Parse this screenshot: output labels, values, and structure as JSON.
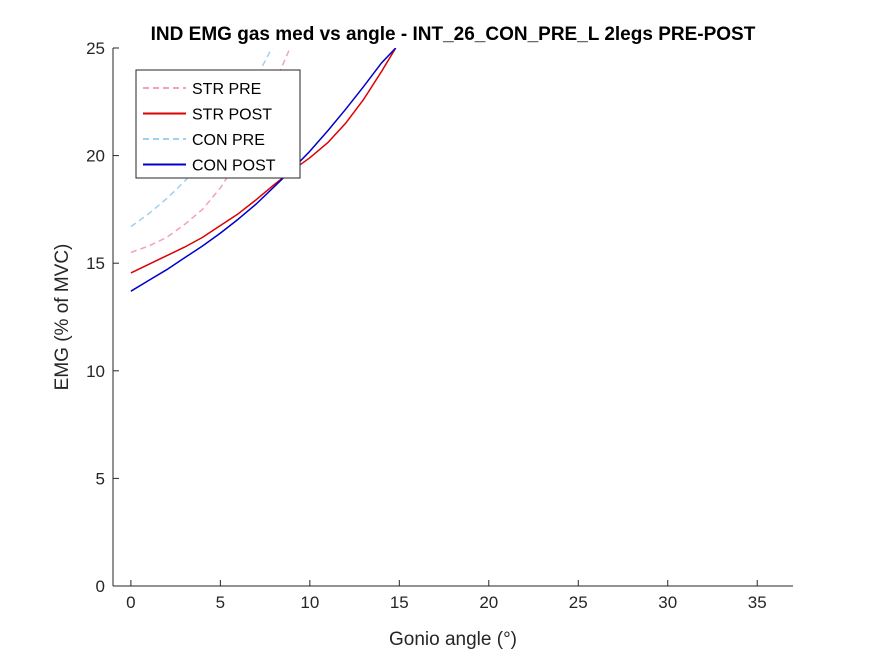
{
  "chart_data": {
    "type": "line",
    "title": "IND EMG gas med vs angle - INT_26_CON_PRE_L 2legs PRE-POST",
    "xlabel": "Gonio angle (°)",
    "ylabel": "EMG (% of MVC)",
    "xlim": [
      -1,
      37
    ],
    "ylim": [
      0,
      25
    ],
    "xticks": [
      "0",
      "5",
      "10",
      "15",
      "20",
      "25",
      "30",
      "35"
    ],
    "yticks": [
      "0",
      "5",
      "10",
      "15",
      "20",
      "25"
    ],
    "grid": false,
    "legend_position": "top-left",
    "series": [
      {
        "name": "STR PRE",
        "color": "#f4a0c0",
        "style": "dashed",
        "x": [
          0,
          1,
          2,
          3,
          4,
          5,
          6,
          7,
          8,
          9
        ],
        "y": [
          15.5,
          15.8,
          16.2,
          16.8,
          17.5,
          18.5,
          19.8,
          21.5,
          23.3,
          25.2
        ]
      },
      {
        "name": "STR POST",
        "color": "#dd0000",
        "style": "solid",
        "x": [
          0,
          1,
          2,
          3,
          4,
          5,
          6,
          7,
          8,
          9,
          10,
          11,
          12,
          13,
          14,
          14.8
        ],
        "y": [
          14.55,
          14.95,
          15.35,
          15.75,
          16.2,
          16.75,
          17.3,
          17.95,
          18.65,
          19.3,
          19.9,
          20.6,
          21.5,
          22.6,
          23.9,
          25.0
        ]
      },
      {
        "name": "CON PRE",
        "color": "#9fd0f0",
        "style": "dashed",
        "x": [
          0,
          1,
          2,
          3,
          4,
          5,
          6,
          7,
          8
        ],
        "y": [
          16.7,
          17.3,
          18.0,
          18.8,
          19.8,
          20.9,
          22.2,
          23.6,
          25.2
        ]
      },
      {
        "name": "CON POST",
        "color": "#0000cc",
        "style": "solid",
        "x": [
          0,
          1,
          2,
          3,
          4,
          5,
          6,
          7,
          8,
          9,
          10,
          11,
          12,
          13,
          14,
          14.8
        ],
        "y": [
          13.7,
          14.2,
          14.7,
          15.25,
          15.8,
          16.4,
          17.05,
          17.75,
          18.55,
          19.35,
          20.2,
          21.15,
          22.15,
          23.2,
          24.3,
          25.0
        ]
      }
    ]
  }
}
